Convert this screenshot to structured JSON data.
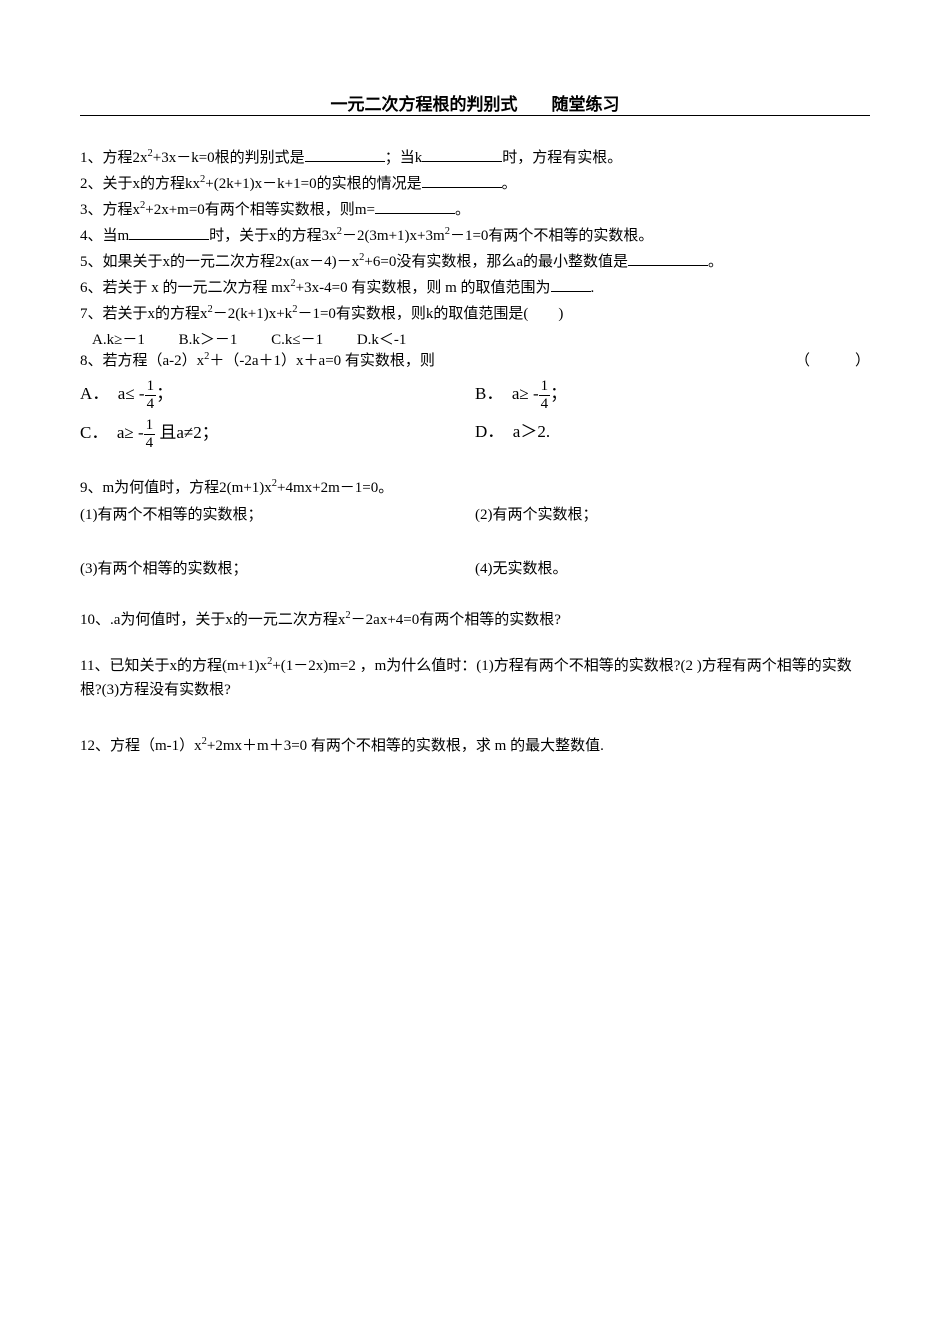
{
  "title": "一元二次方程根的判别式　　随堂练习",
  "p1_a": "1、方程2x",
  "p1_b": "+3x－k=0根的判别式是",
  "p1_c": "；当k",
  "p1_d": "时，方程有实根。",
  "p2_a": "2、关于x的方程kx",
  "p2_b": "+(2k+1)x－k+1=0的实根的情况是",
  "p2_c": "。",
  "p3_a": "3、方程x",
  "p3_b": "+2x+m=0有两个相等实数根，则m=",
  "p3_c": "。",
  "p4_a": "4、当m",
  "p4_b": "时，关于x的方程3x",
  "p4_c": "－2(3m+1)x+3m",
  "p4_d": "－1=0有两个不相等的实数根。",
  "p5_a": "5、如果关于x的一元二次方程2x(ax－4)－x",
  "p5_b": "+6=0没有实数根，那么a的最小整数值是",
  "p5_c": "。",
  "p6_a": "6、若关于 x 的一元二次方程 mx",
  "p6_b": "+3x-4=0 有实数根，则 m 的取值范围为",
  "p6_c": ".",
  "p7_a": "7、若关于x的方程x",
  "p7_b": "－2(k+1)x+k",
  "p7_c": "－1=0有实数根，则k的取值范围是(　　)",
  "p7_oA": "A.k≥－1",
  "p7_oB": "B.k＞－1",
  "p7_oC": "C.k≤－1",
  "p7_oD": "D.k＜-1",
  "p8_a": "8、若方程（a-2）x",
  "p8_b": "＋（-2a＋1）x＋a=0 有实数根，则",
  "p8_paren": "（　　　）",
  "p8_A_pre": "A．　a≤ -",
  "p8_A_post": "；",
  "p8_B_pre": "B．　a≥ -",
  "p8_B_post": "；",
  "p8_C_pre": "C．　a≥ -",
  "p8_C_mid": " 且a≠2；",
  "p8_D": "D．　a＞2.",
  "frac1": "1",
  "frac4": "4",
  "p9_a": "9、m为何值时，方程2(m+1)x",
  "p9_b": "+4mx+2m－1=0。",
  "p9_1": "(1)有两个不相等的实数根；",
  "p9_2": "(2)有两个实数根；",
  "p9_3": "(3)有两个相等的实数根；",
  "p9_4": "(4)无实数根。",
  "p10_a": "10、.a为何值时，关于x的一元二次方程x",
  "p10_b": "－2ax+4=0有两个相等的实数根?",
  "p11_a": "11、已知关于x的方程(m+1)x",
  "p11_b": "+(1－2x)m=2 ，m为什么值时：(1)方程有两个不相等的实数根?(2 )方程有两个相等的实数根?(3)方程没有实数根?",
  "p12_a": "12、方程（m-1）x",
  "p12_b": "+2mx＋m＋3=0 有两个不相等的实数根，求 m 的最大整数值."
}
